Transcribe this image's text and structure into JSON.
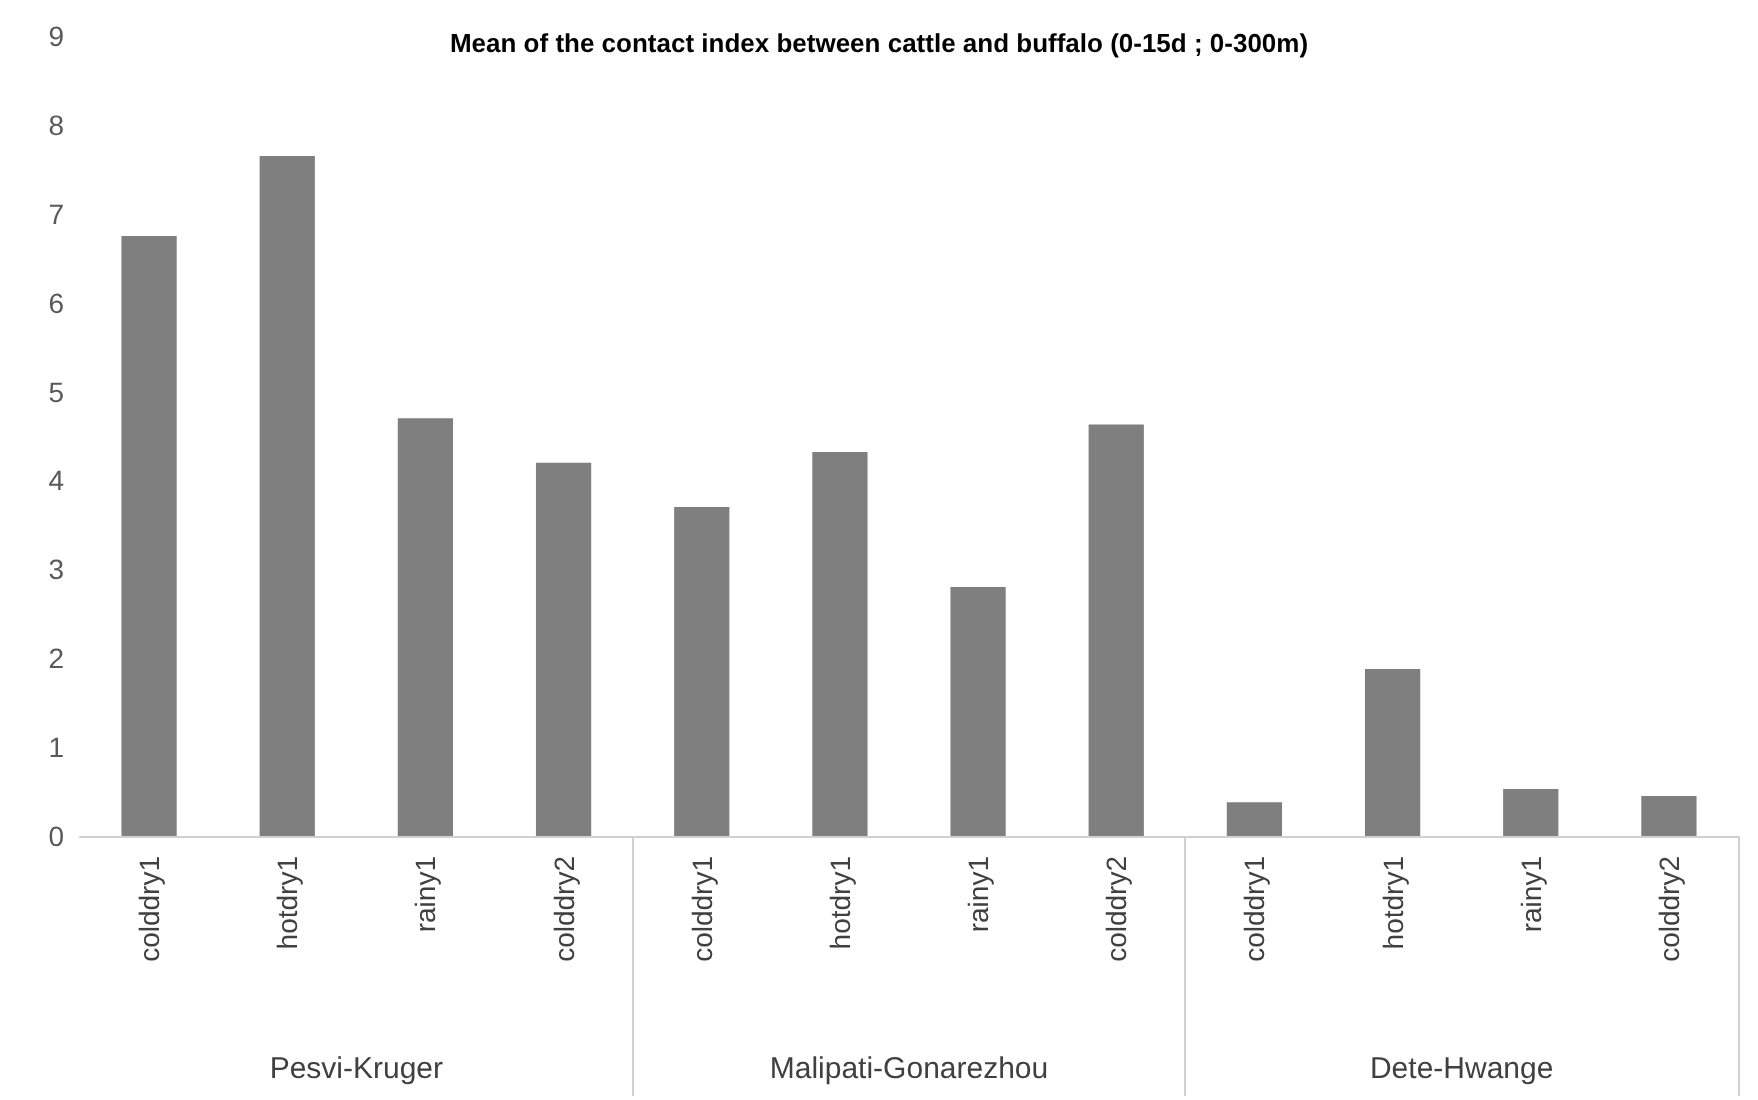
{
  "chart_data": {
    "type": "bar",
    "title": "Mean of the contact index between cattle and buffalo (0-15d ; 0-300m)",
    "categories": [
      "colddry1",
      "hotdry1",
      "rainy1",
      "colddry2",
      "colddry1",
      "hotdry1",
      "rainy1",
      "colddry2",
      "colddry1",
      "hotdry1",
      "rainy1",
      "colddry2"
    ],
    "values": [
      6.75,
      7.65,
      4.7,
      4.2,
      3.7,
      4.32,
      2.8,
      4.63,
      0.38,
      1.88,
      0.53,
      0.45
    ],
    "color": "#7f7f7f",
    "ylim": [
      0,
      9
    ],
    "yticks": [
      0,
      1,
      2,
      3,
      4,
      5,
      6,
      7,
      8,
      9
    ],
    "grid": false,
    "annotations": [
      "Pesvi-Kruger",
      "Malipati-Gonarezhou",
      "Dete-Hwange"
    ]
  }
}
